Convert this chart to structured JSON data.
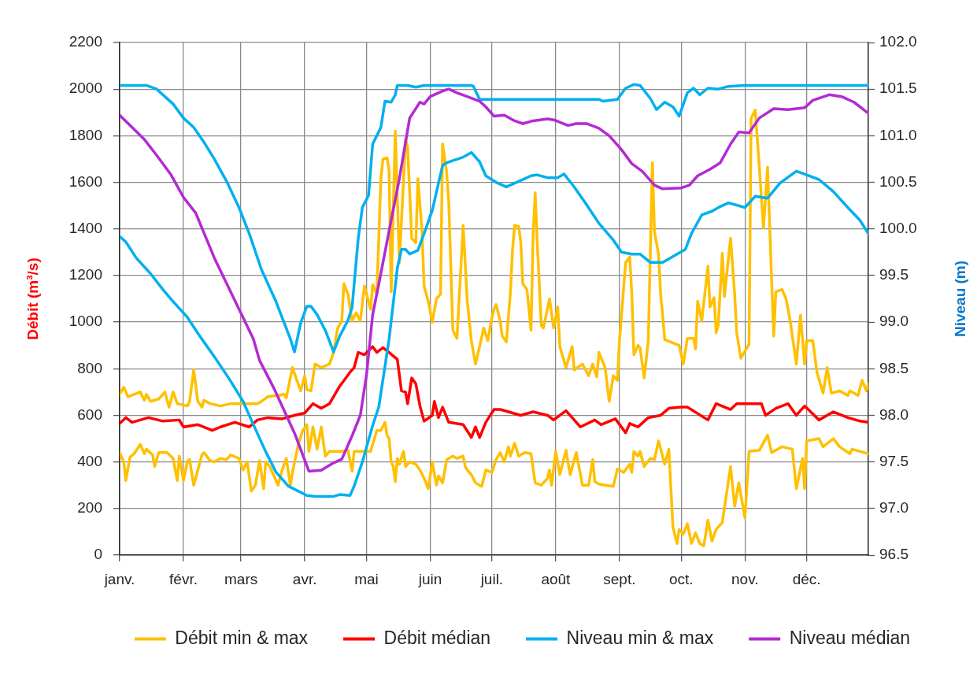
{
  "chart_data": {
    "type": "line",
    "ylabel": "Débit (m³/s)",
    "y2label": "Niveau (m)",
    "xlim": [
      "--01-01",
      "--12-31"
    ],
    "xticks": [
      {
        "value": "--01-01",
        "label": "janv."
      },
      {
        "value": "--02-01",
        "label": "févr."
      },
      {
        "value": "--03-01",
        "label": "mars"
      },
      {
        "value": "--04-01",
        "label": "avr."
      },
      {
        "value": "--05-01",
        "label": "mai"
      },
      {
        "value": "--06-01",
        "label": "juin"
      },
      {
        "value": "--07-01",
        "label": "juil."
      },
      {
        "value": "--08-01",
        "label": "août"
      },
      {
        "value": "--09-01",
        "label": "sept."
      },
      {
        "value": "--10-01",
        "label": "oct."
      },
      {
        "value": "--11-01",
        "label": "nov."
      },
      {
        "value": "--12-01",
        "label": "déc."
      }
    ],
    "ylim": [
      0,
      2200
    ],
    "yticks": [
      0,
      200,
      400,
      600,
      800,
      1000,
      1200,
      1400,
      1600,
      1800,
      2000,
      2200
    ],
    "y2lim": [
      96.5,
      102
    ],
    "y2ticks": [
      96.5,
      {
        "value": 97,
        "label": "97.0"
      },
      97.5,
      {
        "value": 98,
        "label": "98.0"
      },
      98.5,
      {
        "value": 99,
        "label": "99.0"
      },
      99.5,
      {
        "value": 100,
        "label": "100.0"
      },
      100.5,
      {
        "value": 101,
        "label": "101.0"
      },
      101.5,
      {
        "value": 102,
        "label": "102.0"
      }
    ],
    "grid": true,
    "legend": "bottom",
    "series": [
      {
        "name": "Débit min & max",
        "color": "#ffc000",
        "x": [
          "--01-01",
          "--01-03",
          "--01-05",
          "--01-11",
          "--01-13",
          "--01-14",
          "--01-16",
          "--01-20",
          "--01-23",
          "--01-25",
          "--01-27",
          "--01-29",
          "--02-03",
          "--02-04",
          "--02-06",
          "--02-08",
          "--02-10",
          "--02-11",
          "--02-14",
          "--02-19",
          "--02-24",
          "--03-02",
          "--03-09",
          "--03-11",
          "--03-14",
          "--03-19",
          "--03-22",
          "--03-23",
          "--03-26",
          "--03-28",
          "--03-30",
          "--04-01",
          "--04-02",
          "--04-04",
          "--04-06",
          "--04-09",
          "--04-13",
          "--04-15",
          "--04-17",
          "--04-19",
          "--04-20",
          "--04-22",
          "--04-24",
          "--04-26",
          "--04-28",
          "--04-30",
          "--05-03",
          "--05-04",
          "--05-06",
          "--05-08",
          "--05-09",
          "--05-11",
          "--05-12",
          "--05-13",
          "--05-15",
          "--05-17",
          "--05-20",
          "--05-21",
          "--05-23",
          "--05-25",
          "--05-26",
          "--05-28",
          "--05-29",
          "--05-31",
          "--06-02",
          "--06-04",
          "--06-06",
          "--06-07",
          "--06-09",
          "--06-10",
          "--06-12",
          "--06-14",
          "--06-17",
          "--06-19",
          "--06-21",
          "--06-23",
          "--06-25",
          "--06-27",
          "--06-29",
          "--07-01",
          "--07-02",
          "--07-03",
          "--07-05",
          "--07-06",
          "--07-08",
          "--07-10",
          "--07-11",
          "--07-12",
          "--07-14",
          "--07-15",
          "--07-16",
          "--07-18",
          "--07-19",
          "--07-20",
          "--07-21",
          "--07-22",
          "--07-23",
          "--07-25",
          "--07-26",
          "--07-29",
          "--07-31",
          "--08-02",
          "--08-03",
          "--08-06",
          "--08-09",
          "--08-10",
          "--08-14",
          "--08-17",
          "--08-19",
          "--08-21",
          "--08-22",
          "--08-25",
          "--08-27",
          "--08-29",
          "--08-31",
          "--09-01",
          "--09-04",
          "--09-06",
          "--09-07",
          "--09-08",
          "--09-10",
          "--09-11",
          "--09-13",
          "--09-15",
          "--09-17",
          "--09-18",
          "--09-20",
          "--09-21",
          "--09-22",
          "--09-23",
          "--09-30",
          "--10-02",
          "--10-04",
          "--10-07",
          "--10-08",
          "--10-09",
          "--10-11",
          "--10-14",
          "--10-15",
          "--10-17",
          "--10-18",
          "--10-19",
          "--10-21",
          "--10-22",
          "--10-25",
          "--10-27",
          "--10-28",
          "--10-30",
          "--11-03",
          "--11-04",
          "--11-06",
          "--11-08",
          "--11-10",
          "--11-12",
          "--11-14",
          "--11-15",
          "--11-16",
          "--11-19",
          "--11-21",
          "--11-23",
          "--11-26",
          "--11-28",
          "--11-30",
          "--12-01",
          "--12-04",
          "--12-06",
          "--12-09",
          "--12-11",
          "--12-13",
          "--12-17",
          "--12-21",
          "--12-22",
          "--12-24",
          "--12-26",
          "--12-28",
          "--12-30",
          "--12-31"
        ],
        "values": [
          690,
          720,
          680,
          700,
          665,
          690,
          660,
          670,
          700,
          635,
          700,
          650,
          640,
          660,
          795,
          660,
          635,
          665,
          650,
          640,
          650,
          650,
          650,
          660,
          680,
          685,
          690,
          675,
          805,
          755,
          705,
          770,
          710,
          705,
          820,
          805,
          820,
          870,
          975,
          1005,
          1165,
          1120,
          1005,
          1040,
          1005,
          1155,
          1055,
          1160,
          1120,
          1615,
          1700,
          1705,
          1650,
          1130,
          1820,
          1255,
          1785,
          1750,
          1360,
          1340,
          1615,
          1390,
          1155,
          1090,
          1000,
          1100,
          1120,
          1765,
          1640,
          1515,
          965,
          930,
          1415,
          1090,
          920,
          820,
          895,
          975,
          920,
          1020,
          1055,
          1075,
          1005,
          940,
          915,
          1130,
          1310,
          1415,
          1410,
          1345,
          1165,
          1140,
          1055,
          965,
          1370,
          1555,
          1345,
          985,
          975,
          1100,
          975,
          1065,
          895,
          805,
          895,
          795,
          820,
          770,
          820,
          765,
          870,
          805,
          660,
          770,
          750,
          920,
          1255,
          1280,
          1120,
          860,
          900,
          890,
          760,
          920,
          1685,
          1390,
          1290,
          1120,
          1030,
          925,
          900,
          820,
          930,
          930,
          885,
          1090,
          1005,
          1240,
          1065,
          1105,
          955,
          985,
          1295,
          1110,
          1360,
          1120,
          955,
          845,
          905,
          1875,
          1910,
          1665,
          1405,
          1665,
          1175,
          940,
          1130,
          1140,
          1100,
          1005,
          820,
          1030,
          820,
          920,
          920,
          785,
          695,
          805,
          695,
          705,
          685,
          705,
          695,
          685,
          750,
          705,
          735
        ]
      },
      {
        "color": "#ffc000",
        "x": [
          "--01-01",
          "--01-03",
          "--01-04",
          "--01-06",
          "--01-08",
          "--01-11",
          "--01-13",
          "--01-14",
          "--01-17",
          "--01-18",
          "--01-20",
          "--01-24",
          "--01-27",
          "--01-29",
          "--01-30",
          "--02-01",
          "--02-03",
          "--02-04",
          "--02-06",
          "--02-08",
          "--02-10",
          "--02-11",
          "--02-14",
          "--02-16",
          "--02-19",
          "--02-22",
          "--02-24",
          "--02-28",
          "--03-02",
          "--03-04",
          "--03-06",
          "--03-08",
          "--03-10",
          "--03-12",
          "--03-13",
          "--03-15",
          "--03-19",
          "--03-21",
          "--03-23",
          "--03-25",
          "--03-26",
          "--03-29",
          "--03-31",
          "--04-02",
          "--04-03",
          "--04-05",
          "--04-07",
          "--04-09",
          "--04-11",
          "--04-13",
          "--04-19",
          "--04-22",
          "--04-24",
          "--04-25",
          "--05-03",
          "--05-06",
          "--05-08",
          "--05-10",
          "--05-11",
          "--05-12",
          "--05-13",
          "--05-14",
          "--05-15",
          "--05-16",
          "--05-17",
          "--05-19",
          "--05-20",
          "--05-22",
          "--05-25",
          "--05-27",
          "--05-29",
          "--05-31",
          "--06-02",
          "--06-04",
          "--06-05",
          "--06-07",
          "--06-09",
          "--06-12",
          "--06-14",
          "--06-17",
          "--06-18",
          "--06-19",
          "--06-21",
          "--06-23",
          "--06-26",
          "--06-28",
          "--07-01",
          "--07-03",
          "--07-05",
          "--07-07",
          "--07-09",
          "--07-10",
          "--07-12",
          "--07-14",
          "--07-17",
          "--07-20",
          "--07-22",
          "--07-25",
          "--07-28",
          "--07-29",
          "--07-30",
          "--08-01",
          "--08-03",
          "--08-06",
          "--08-08",
          "--08-11",
          "--08-14",
          "--08-17",
          "--08-19",
          "--08-20",
          "--08-22",
          "--08-25",
          "--08-29",
          "--08-31",
          "--09-03",
          "--09-06",
          "--09-07",
          "--09-08",
          "--09-10",
          "--09-11",
          "--09-13",
          "--09-16",
          "--09-18",
          "--09-20",
          "--09-23",
          "--09-25",
          "--09-27",
          "--09-29",
          "--09-30",
          "--10-02",
          "--10-04",
          "--10-06",
          "--10-08",
          "--10-10",
          "--10-12",
          "--10-14",
          "--10-16",
          "--10-18",
          "--10-21",
          "--10-25",
          "--10-27",
          "--10-29",
          "--11-01",
          "--11-03",
          "--11-08",
          "--11-12",
          "--11-14",
          "--11-19",
          "--11-24",
          "--11-26",
          "--11-29",
          "--11-30",
          "--12-01",
          "--12-07",
          "--12-09",
          "--12-14",
          "--12-17",
          "--12-22",
          "--12-23",
          "--12-27",
          "--12-31"
        ],
        "values": [
          440,
          400,
          320,
          420,
          435,
          475,
          435,
          455,
          430,
          380,
          440,
          440,
          415,
          320,
          425,
          320,
          405,
          410,
          300,
          365,
          430,
          440,
          405,
          400,
          415,
          410,
          430,
          415,
          365,
          400,
          275,
          300,
          405,
          285,
          400,
          380,
          300,
          365,
          415,
          300,
          355,
          480,
          535,
          560,
          445,
          550,
          455,
          550,
          425,
          445,
          445,
          450,
          360,
          445,
          445,
          535,
          535,
          570,
          515,
          500,
          400,
          380,
          315,
          415,
          390,
          445,
          380,
          400,
          390,
          365,
          330,
          285,
          400,
          300,
          340,
          310,
          410,
          425,
          415,
          425,
          380,
          365,
          345,
          310,
          295,
          365,
          355,
          410,
          440,
          400,
          465,
          425,
          480,
          425,
          440,
          435,
          310,
          300,
          330,
          365,
          300,
          445,
          345,
          450,
          345,
          440,
          300,
          300,
          410,
          315,
          305,
          300,
          295,
          370,
          355,
          390,
          355,
          445,
          425,
          445,
          380,
          415,
          410,
          490,
          390,
          455,
          120,
          50,
          110,
          90,
          135,
          50,
          95,
          50,
          40,
          150,
          60,
          110,
          140,
          380,
          210,
          310,
          160,
          445,
          450,
          515,
          440,
          465,
          455,
          285,
          415,
          285,
          490,
          500,
          465,
          500,
          465,
          435,
          455,
          445,
          435
        ]
      },
      {
        "name": "Débit médian",
        "color": "#ff0000",
        "x": [
          "--01-01",
          "--01-04",
          "--01-07",
          "--01-15",
          "--01-22",
          "--01-30",
          "--02-01",
          "--02-08",
          "--02-15",
          "--02-19",
          "--02-26",
          "--03-05",
          "--03-09",
          "--03-14",
          "--03-21",
          "--03-27",
          "--04-01",
          "--04-05",
          "--04-09",
          "--04-13",
          "--04-18",
          "--04-23",
          "--04-25",
          "--04-27",
          "--04-30",
          "--05-04",
          "--05-06",
          "--05-09",
          "--05-12",
          "--05-16",
          "--05-18",
          "--05-20",
          "--05-21",
          "--05-23",
          "--05-25",
          "--05-27",
          "--05-29",
          "--06-02",
          "--06-03",
          "--06-05",
          "--06-07",
          "--06-10",
          "--06-17",
          "--06-21",
          "--06-23",
          "--06-25",
          "--06-28",
          "--07-02",
          "--07-05",
          "--07-15",
          "--07-21",
          "--07-28",
          "--07-31",
          "--08-06",
          "--08-10",
          "--08-13",
          "--08-20",
          "--08-23",
          "--08-30",
          "--09-04",
          "--09-06",
          "--09-10",
          "--09-15",
          "--09-21",
          "--09-25",
          "--10-01",
          "--10-04",
          "--10-14",
          "--10-18",
          "--10-25",
          "--10-28",
          "--11-01",
          "--11-03",
          "--11-09",
          "--11-11",
          "--11-16",
          "--11-22",
          "--11-26",
          "--11-30",
          "--12-07",
          "--12-14",
          "--12-21",
          "--12-27",
          "--12-31"
        ],
        "values": [
          565,
          590,
          570,
          590,
          575,
          580,
          550,
          560,
          535,
          550,
          570,
          550,
          580,
          590,
          585,
          600,
          610,
          650,
          630,
          650,
          725,
          785,
          805,
          870,
          860,
          895,
          870,
          890,
          870,
          840,
          705,
          700,
          650,
          760,
          735,
          640,
          575,
          600,
          660,
          590,
          635,
          570,
          560,
          505,
          550,
          505,
          570,
          625,
          625,
          600,
          615,
          600,
          580,
          620,
          580,
          550,
          580,
          560,
          585,
          525,
          565,
          550,
          590,
          600,
          630,
          635,
          635,
          580,
          650,
          625,
          650,
          650,
          650,
          650,
          600,
          630,
          650,
          600,
          640,
          580,
          615,
          590,
          575,
          570
        ]
      },
      {
        "name": "Niveau min & max",
        "color": "#00b0f0",
        "axis": "y2",
        "x": [
          "--01-01",
          "--01-14",
          "--01-19",
          "--01-27",
          "--02-01",
          "--02-06",
          "--02-11",
          "--02-16",
          "--02-22",
          "--02-28",
          "--03-05",
          "--03-11",
          "--03-18",
          "--03-25",
          "--03-27",
          "--03-30",
          "--04-02",
          "--04-04",
          "--04-07",
          "--04-11",
          "--04-15",
          "--04-18",
          "--04-22",
          "--04-24",
          "--04-27",
          "--04-29",
          "--05-02",
          "--05-04",
          "--05-08",
          "--05-10",
          "--05-13",
          "--05-15",
          "--05-16",
          "--05-21",
          "--05-25",
          "--05-29",
          "--06-21",
          "--06-22",
          "--06-25",
          "--08-22",
          "--08-24",
          "--08-31",
          "--09-04",
          "--09-08",
          "--09-11",
          "--09-16",
          "--09-19",
          "--09-23",
          "--09-27",
          "--09-30",
          "--10-04",
          "--10-07",
          "--10-10",
          "--10-14",
          "--10-19",
          "--10-24",
          "--11-01",
          "--12-31"
        ],
        "values": [
          101.54,
          101.54,
          101.5,
          101.34,
          101.19,
          101.09,
          100.93,
          100.75,
          100.51,
          100.23,
          99.95,
          99.56,
          99.22,
          98.82,
          98.68,
          98.99,
          99.17,
          99.17,
          99.08,
          98.91,
          98.68,
          98.85,
          99.02,
          99.16,
          99.9,
          100.23,
          100.36,
          100.91,
          101.09,
          101.37,
          101.36,
          101.44,
          101.54,
          101.54,
          101.52,
          101.54,
          101.54,
          101.53,
          101.39,
          101.39,
          101.37,
          101.39,
          101.51,
          101.55,
          101.54,
          101.4,
          101.28,
          101.36,
          101.31,
          101.21,
          101.46,
          101.51,
          101.44,
          101.51,
          101.5,
          101.53,
          101.54,
          101.54
        ]
      },
      {
        "color": "#00b0f0",
        "axis": "y2",
        "x": [
          "--01-01",
          "--01-04",
          "--01-09",
          "--01-16",
          "--01-22",
          "--01-27",
          "--02-03",
          "--02-08",
          "--02-16",
          "--02-23",
          "--03-02",
          "--03-06",
          "--03-13",
          "--03-18",
          "--03-24",
          "--04-02",
          "--04-06",
          "--04-15",
          "--04-18",
          "--04-23",
          "--04-25",
          "--04-29",
          "--05-04",
          "--05-07",
          "--05-12",
          "--05-16",
          "--05-18",
          "--05-20",
          "--05-22",
          "--05-26",
          "--05-29",
          "--06-02",
          "--06-05",
          "--06-07",
          "--06-09",
          "--06-13",
          "--06-17",
          "--06-21",
          "--06-25",
          "--06-28",
          "--07-03",
          "--07-08",
          "--07-14",
          "--07-20",
          "--07-23",
          "--07-28",
          "--08-02",
          "--08-05",
          "--08-10",
          "--08-16",
          "--08-22",
          "--08-29",
          "--09-02",
          "--09-07",
          "--09-11",
          "--09-16",
          "--09-22",
          "--09-29",
          "--10-03",
          "--10-06",
          "--10-11",
          "--10-16",
          "--10-20",
          "--10-24",
          "--11-01",
          "--11-06",
          "--11-12",
          "--11-18",
          "--11-21",
          "--11-26",
          "--12-01",
          "--12-07",
          "--12-14",
          "--12-21",
          "--12-27",
          "--12-31"
        ],
        "values": [
          99.92,
          99.86,
          99.69,
          99.52,
          99.35,
          99.22,
          99.05,
          98.88,
          98.63,
          98.4,
          98.15,
          97.95,
          97.61,
          97.39,
          97.24,
          97.14,
          97.13,
          97.13,
          97.15,
          97.14,
          97.24,
          97.5,
          97.89,
          98.09,
          98.82,
          99.58,
          99.78,
          99.78,
          99.73,
          99.77,
          99.95,
          100.2,
          100.49,
          100.68,
          100.71,
          100.74,
          100.77,
          100.82,
          100.72,
          100.57,
          100.5,
          100.45,
          100.51,
          100.57,
          100.58,
          100.55,
          100.55,
          100.59,
          100.45,
          100.26,
          100.06,
          99.88,
          99.75,
          99.73,
          99.73,
          99.64,
          99.64,
          99.73,
          99.78,
          99.95,
          100.15,
          100.19,
          100.24,
          100.28,
          100.23,
          100.35,
          100.33,
          100.49,
          100.54,
          100.62,
          100.58,
          100.53,
          100.4,
          100.23,
          100.09,
          99.95
        ]
      },
      {
        "name": "Niveau médian",
        "color": "#b42ad4",
        "axis": "y2",
        "x": [
          "--01-01",
          "--01-13",
          "--01-19",
          "--01-26",
          "--02-01",
          "--02-07",
          "--02-16",
          "--02-28",
          "--03-07",
          "--03-10",
          "--03-17",
          "--03-27",
          "--04-03",
          "--04-09",
          "--04-15",
          "--04-19",
          "--04-24",
          "--04-28",
          "--05-01",
          "--05-04",
          "--05-07",
          "--05-12",
          "--05-17",
          "--05-22",
          "--05-27",
          "--05-29",
          "--06-01",
          "--06-07",
          "--06-10",
          "--06-14",
          "--06-19",
          "--06-25",
          "--06-28",
          "--07-02",
          "--07-07",
          "--07-12",
          "--07-16",
          "--07-21",
          "--07-28",
          "--07-31",
          "--08-07",
          "--08-11",
          "--08-16",
          "--08-22",
          "--08-27",
          "--09-02",
          "--09-07",
          "--09-12",
          "--09-18",
          "--09-22",
          "--10-01",
          "--10-05",
          "--10-09",
          "--10-15",
          "--10-20",
          "--10-25",
          "--10-29",
          "--11-03",
          "--11-08",
          "--11-15",
          "--11-22",
          "--11-30",
          "--12-04",
          "--12-12",
          "--12-18",
          "--12-24",
          "--12-31"
        ],
        "values": [
          101.22,
          100.96,
          100.79,
          100.58,
          100.34,
          100.17,
          99.69,
          99.14,
          98.82,
          98.59,
          98.29,
          97.81,
          97.4,
          97.41,
          97.49,
          97.53,
          97.78,
          98.0,
          98.43,
          99.08,
          99.41,
          99.98,
          100.54,
          101.19,
          101.36,
          101.34,
          101.42,
          101.48,
          101.5,
          101.46,
          101.42,
          101.37,
          101.31,
          101.21,
          101.22,
          101.16,
          101.13,
          101.16,
          101.18,
          101.17,
          101.11,
          101.13,
          101.13,
          101.08,
          101.0,
          100.85,
          100.7,
          100.62,
          100.47,
          100.43,
          100.44,
          100.47,
          100.57,
          100.64,
          100.71,
          100.91,
          101.04,
          101.03,
          101.19,
          101.29,
          101.28,
          101.3,
          101.38,
          101.44,
          101.42,
          101.36,
          101.24
        ]
      }
    ]
  }
}
